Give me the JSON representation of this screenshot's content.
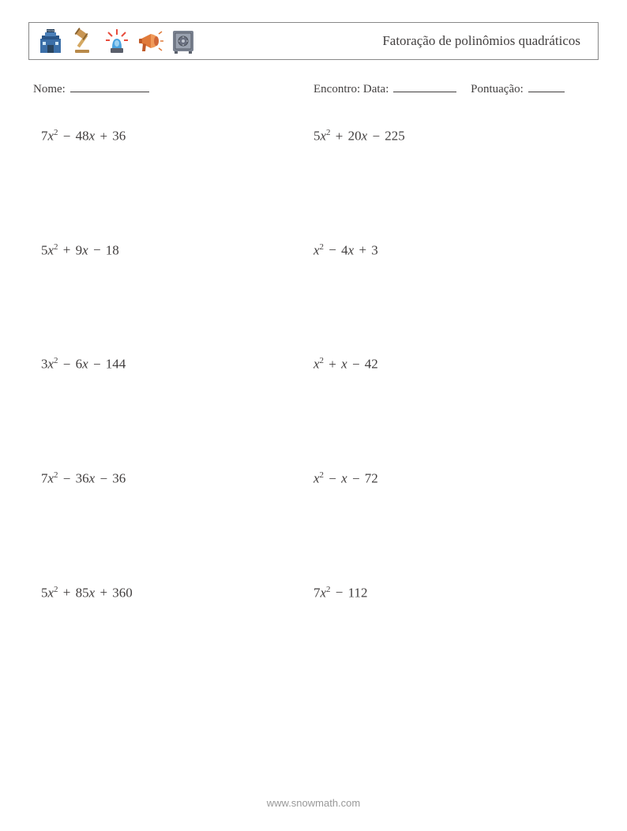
{
  "header": {
    "title": "Fatoração de polinômios quadráticos",
    "icons": [
      {
        "name": "police-station-icon"
      },
      {
        "name": "gavel-icon"
      },
      {
        "name": "siren-icon"
      },
      {
        "name": "megaphone-icon"
      },
      {
        "name": "safe-icon"
      }
    ]
  },
  "info": {
    "name_label": "Nome:",
    "date_label": "Encontro: Data:",
    "score_label": "Pontuação:"
  },
  "problems": [
    [
      {
        "a": "7",
        "b": "− 48",
        "c": "+ 36"
      },
      {
        "a": "5",
        "b": "+ 20",
        "c": "− 225"
      }
    ],
    [
      {
        "a": "5",
        "b": "+ 9",
        "c": "− 18"
      },
      {
        "a": "",
        "b": "− 4",
        "c": "+ 3"
      }
    ],
    [
      {
        "a": "3",
        "b": "− 6",
        "c": "− 144"
      },
      {
        "a": "",
        "b": "+ ",
        "c": "− 42",
        "bnox": true
      }
    ],
    [
      {
        "a": "7",
        "b": "− 36",
        "c": "− 36"
      },
      {
        "a": "",
        "b": "− ",
        "c": "− 72",
        "bnox": true
      }
    ],
    [
      {
        "a": "5",
        "b": "+ 85",
        "c": "+ 360"
      },
      {
        "a": "7",
        "b": "",
        "c": "− 112",
        "nomiddle": true
      }
    ]
  ],
  "footer": "www.snowmath.com",
  "colors": {
    "text": "#423f3f",
    "border": "#888888",
    "footer": "#999999",
    "background": "#ffffff"
  }
}
